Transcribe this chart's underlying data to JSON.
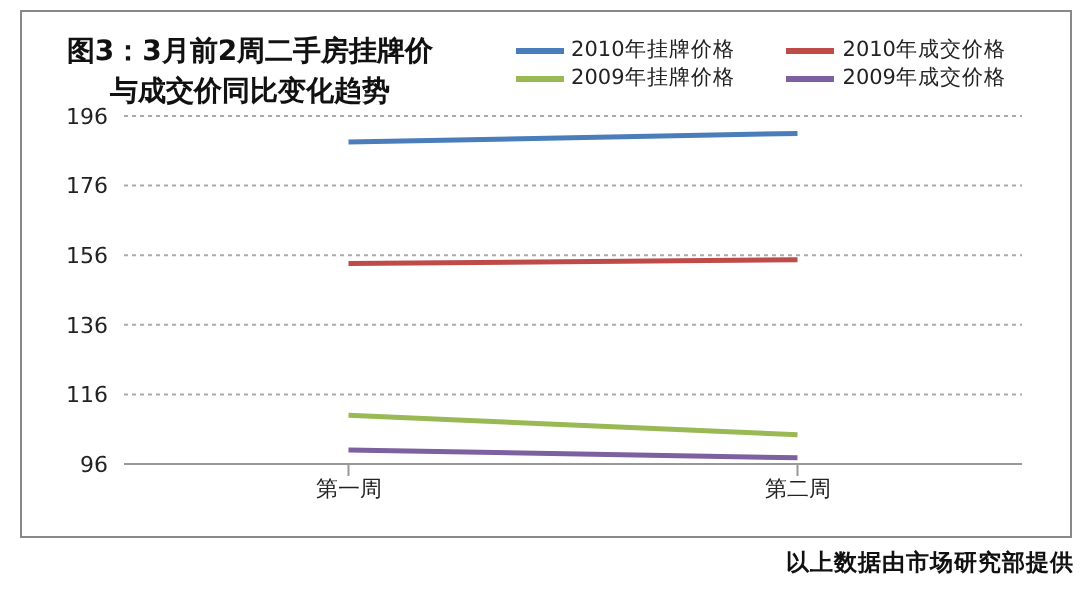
{
  "chart_data": {
    "type": "line",
    "title": "图3：3月前2周二手房挂牌价与成交价同比变化趋势",
    "categories": [
      "第一周",
      "第二周"
    ],
    "series": [
      {
        "name": "2010年挂牌价格",
        "color": "#4a7ebb",
        "values": [
          188.5,
          191
        ]
      },
      {
        "name": "2010年成交价格",
        "color": "#be4b48",
        "values": [
          153.6,
          154.7
        ]
      },
      {
        "name": "2009年挂牌价格",
        "color": "#98b954",
        "values": [
          110,
          104.4
        ]
      },
      {
        "name": "2009年成交价格",
        "color": "#7d60a0",
        "values": [
          100,
          97.8
        ]
      }
    ],
    "ylim": [
      96,
      196
    ],
    "yticks": [
      96,
      116,
      136,
      156,
      176,
      196
    ],
    "grid": "y",
    "legend": "top right",
    "marker": "none",
    "line_style": "solid",
    "annotations": [
      "以上数据由市场研究部提供"
    ]
  }
}
